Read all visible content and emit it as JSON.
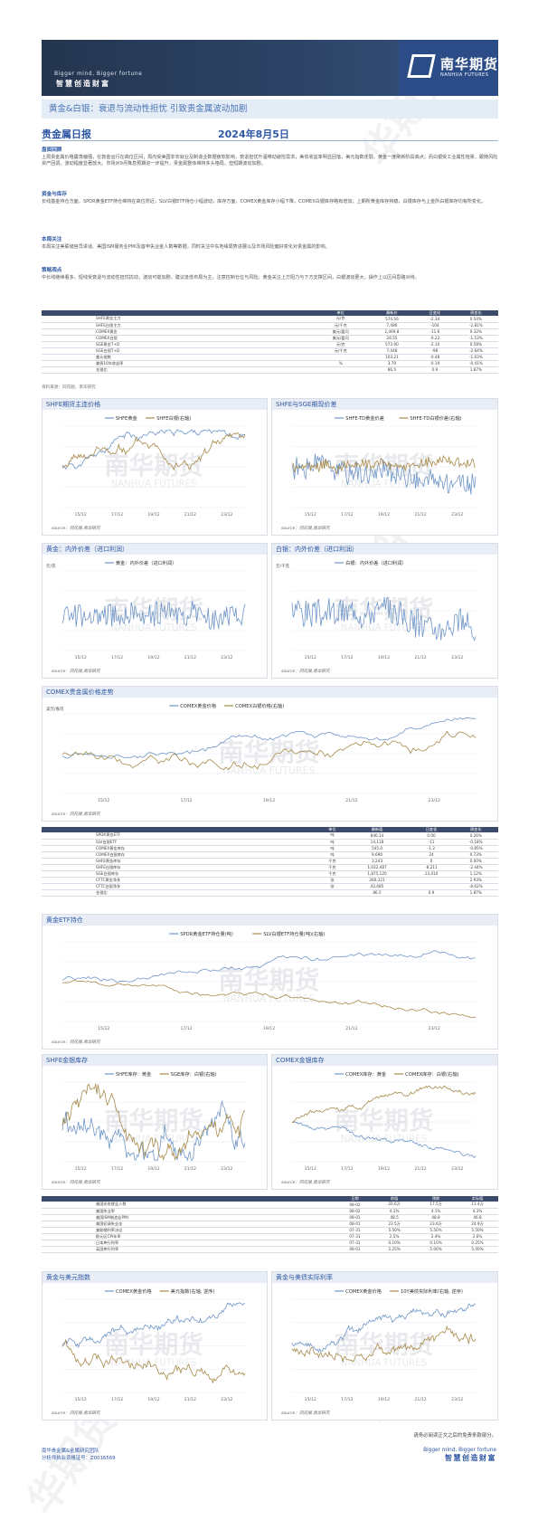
{
  "header": {
    "slogan": "Bigger mind, Bigger fortune",
    "cn": "智慧创造财富",
    "logo_cn": "南华期货",
    "logo_en": "NANHUA FUTURES"
  },
  "headline": "黄金&白银：衰退与流动性担忧 引致贵金属波动加剧",
  "report": {
    "title": "贵金属日报",
    "date": "2024年8月5日"
  },
  "watermark": {
    "cn": "南华期货",
    "en": "NANHUA FUTURES",
    "side": "华期货"
  },
  "sections": [
    {
      "head": "盘面回顾",
      "body": "上周贵金属价格震荡偏强，伦敦金运行在高位区间，周内受美国非农就业及制造业数据疲软影响，衰退担忧升温带动避险需求，美债收益率明显回落，美元指数走弱，黄金一度刷新阶段高点；而白银受工业属性拖累，跟随风险资产回调，波动幅度显著放大。市场对9月降息预期进一步提升，贵金属整体维持多头格局，但短期波动加剧。"
    },
    {
      "head": "资金与库存",
      "body": "长线基金持仓方面，SPDR黄金ETF持仓维持在高位附近，SLV白银ETF持仓小幅波动；库存方面，COMEX黄金库存小幅下降，COMEX白银库存略有增加；上期所黄金库存持稳，白银库存与上金所白银库存均有所变化。"
    },
    {
      "head": "本周关注",
      "body": "本周关注美联储官员讲话、美国ISM服务业PMI及首申失业金人数等数据，同时关注中东地缘局势进展以及市场风险偏好变化对贵金属的影响。"
    },
    {
      "head": "策略观点",
      "body": "中长线继续看多，短线受衰退与流动性担忧扰动，波动可能加剧，建议逢低布局为主，注意控制仓位与风险。黄金关注上方阻力与下方支撑区间，白银波动更大，操作上以区间思路对待。"
    }
  ],
  "table1": {
    "headers": [
      "",
      "单位",
      "最新价",
      "日变化",
      "周变化"
    ],
    "rows": [
      [
        "SHFE黄金主力",
        "元/克",
        "574.56",
        "-2.34",
        "0.54%"
      ],
      [
        "SHFE白银主力",
        "元/千克",
        "7,486",
        "-104",
        "-2.81%"
      ],
      [
        "COMEX黄金",
        "美元/盎司",
        "2,469.8",
        "-11.6",
        "0.32%"
      ],
      [
        "COMEX白银",
        "美元/盎司",
        "28.55",
        "-0.22",
        "-1.53%"
      ],
      [
        "SGE黄金T+D",
        "元/克",
        "573.90",
        "-2.10",
        "0.58%"
      ],
      [
        "SGE白银T+D",
        "元/千克",
        "7,448",
        "-98",
        "-2.64%"
      ],
      [
        "美元指数",
        "",
        "103.21",
        "-0.48",
        "-1.03%"
      ],
      [
        "美债10年收益率",
        "%",
        "3.79",
        "-0.19",
        "-0.41%"
      ],
      [
        "金银比",
        "",
        "86.5",
        "0.9",
        "1.87%"
      ]
    ]
  },
  "table1_src": "资料来源：同花顺，南华研究",
  "table2": {
    "headers": [
      "",
      "单位",
      "最新值",
      "日变化",
      "周变化"
    ],
    "rows": [
      [
        "SPDR黄金ETF",
        "吨",
        "846.14",
        "0.00",
        "0.26%"
      ],
      [
        "SLV白银ETF",
        "吨",
        "14,118",
        "-11",
        "-0.18%"
      ],
      [
        "COMEX黄金库存",
        "吨",
        "545.0",
        "-1.2",
        "-0.85%"
      ],
      [
        "COMEX白银库存",
        "吨",
        "9,690",
        "24",
        "0.73%"
      ],
      [
        "SHFE黄金库存",
        "千克",
        "3,243",
        "0",
        "0.00%"
      ],
      [
        "SHFE白银库存",
        "千克",
        "1,032,487",
        "-8,211",
        "-2.44%"
      ],
      [
        "SGE白银库存",
        "千克",
        "1,875,120",
        "13,410",
        "1.12%"
      ],
      [
        "CFTC黄金净多",
        "张",
        "260,321",
        "",
        "2.93%"
      ],
      [
        "CFTC白银净多",
        "张",
        "42,685",
        "",
        "-8.62%"
      ],
      [
        "金银比",
        "",
        "86.5",
        "0.9",
        "1.87%"
      ]
    ]
  },
  "table3": {
    "headers": [
      "",
      "日期",
      "前值",
      "预期",
      "实际值"
    ],
    "rows": [
      [
        "美国非农就业人数",
        "08-02",
        "20.6万",
        "17.5万",
        "11.4万"
      ],
      [
        "美国失业率",
        "08-02",
        "4.1%",
        "4.1%",
        "4.3%"
      ],
      [
        "美国ISM制造业PMI",
        "08-01",
        "48.5",
        "48.8",
        "46.8"
      ],
      [
        "美国初请失业金",
        "08-01",
        "23.5万",
        "23.6万",
        "24.9万"
      ],
      [
        "美联储利率决议",
        "07-31",
        "5.50%",
        "5.50%",
        "5.50%"
      ],
      [
        "欧元区CPI年率",
        "07-31",
        "2.5%",
        "2.4%",
        "2.6%"
      ],
      [
        "日本央行利率",
        "07-31",
        "0.10%",
        "0.10%",
        "0.25%"
      ],
      [
        "英国央行利率",
        "08-01",
        "5.25%",
        "5.00%",
        "5.00%"
      ]
    ]
  },
  "panels": [
    {
      "title": "SHFE期货主连价格",
      "legend": [
        "SHFE黄金",
        "SHFE白银(右轴)"
      ],
      "source": "source：同花顺,南华研究"
    },
    {
      "title": "SHFE与SGE期现价差",
      "legend": [
        "SHFE-TD黄金价差",
        "SHFE-TD白银价差(右轴)"
      ],
      "source": "source：同花顺,南华研究"
    },
    {
      "title": "黄金：内外价差（进口利润）",
      "legend": [
        "黄金：内外价差（进口利润）"
      ],
      "unit": "元/克",
      "source": "source：同花顺,南华研究"
    },
    {
      "title": "白银：内外价差（进口利润）",
      "legend": [
        "白银：内外价差（进口利润）"
      ],
      "unit": "元/千克",
      "source": "source：同花顺,南华研究"
    },
    {
      "title": "COMEX贵金属价格走势",
      "legend": [
        "COMEX黄金价格",
        "COMEX白银价格(右轴)"
      ],
      "unit": "美元/盎司",
      "source": "source：同花顺,南华研究"
    },
    {
      "title": "黄金ETF持仓",
      "legend": [
        "SPDR黄金ETF持仓量(吨)",
        "SLV白银ETF持仓量(吨)(右轴)"
      ],
      "source": "source：同花顺,南华研究"
    },
    {
      "title": "SHFE金银库存",
      "legend": [
        "SHFE库存：黄金",
        "SGE库存：白银(右轴)"
      ],
      "source": "source：同花顺,南华研究"
    },
    {
      "title": "COMEX金银库存",
      "legend": [
        "COMEX库存：黄金",
        "COMEX库存：白银(右轴)"
      ],
      "source": "source：同花顺,南华研究"
    },
    {
      "title": "黄金与美元指数",
      "legend": [
        "COMEX黄金价格",
        "美元指数(右轴, 逆序)"
      ],
      "source": "source：同花顺,南华研究"
    },
    {
      "title": "黄金与美债实际利率",
      "legend": [
        "COMEX黄金价格",
        "10Y美债实际利率(右轴, 逆序)"
      ],
      "source": "source：同花顺,南华研究"
    }
  ],
  "x_ticks": [
    "15/12",
    "17/12",
    "19/12",
    "21/12",
    "23/12"
  ],
  "disclaimer": "请务必阅读正文之后的免责条款部分。",
  "footer": {
    "team": "南华贵金属&金属研究团队",
    "analyst": "分析师执业资格证号：Z0016569",
    "slogan": "Bigger mind, Bigger fortune",
    "cn": "智慧创造财富"
  },
  "colors": {
    "accent": "#2e58a4",
    "gold_series": "#6f96c8",
    "silver_series": "#a88a4a"
  }
}
